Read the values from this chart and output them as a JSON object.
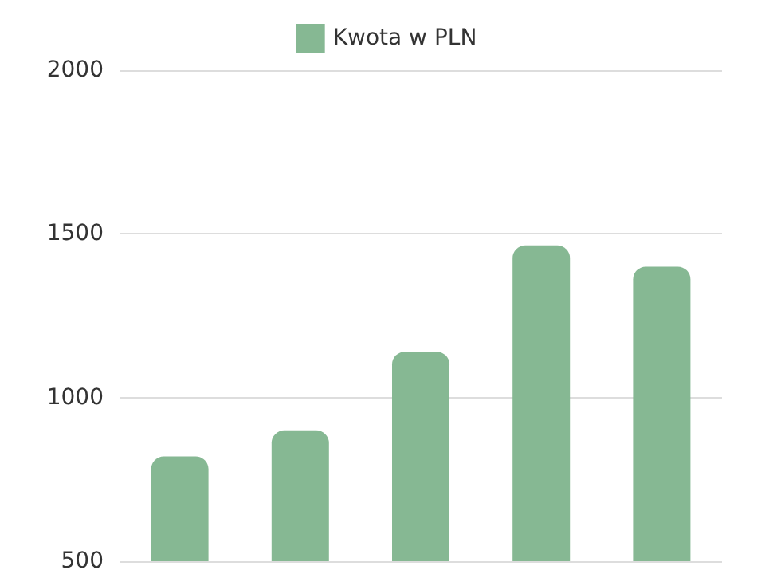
{
  "chart_data": {
    "type": "bar",
    "categories": [
      null,
      null,
      null,
      null,
      null
    ],
    "series": [
      {
        "name": "Kwota w PLN",
        "color": "#86b893",
        "values": [
          820,
          900,
          1140,
          1465,
          1400
        ]
      }
    ],
    "ylim": [
      500,
      2000
    ],
    "yticks": [
      500,
      1000,
      1500,
      2000
    ],
    "grid": "y",
    "legend": "top",
    "tick_labels": "y"
  }
}
